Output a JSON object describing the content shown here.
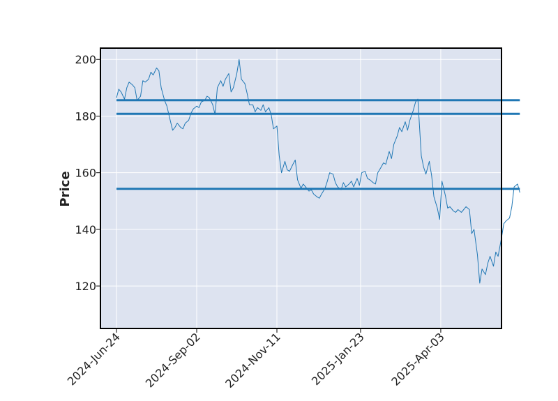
{
  "chart_data": {
    "type": "line",
    "title": "",
    "xlabel": "",
    "ylabel": "Price",
    "ylim": [
      105,
      204
    ],
    "yticks": [
      120,
      140,
      160,
      180,
      200
    ],
    "xlim": [
      "2024-06-10",
      "2025-05-26"
    ],
    "xticks": [
      {
        "date": "2024-06-24",
        "label": "2024-Jun-24"
      },
      {
        "date": "2024-09-02",
        "label": "2024-Sep-02"
      },
      {
        "date": "2024-11-11",
        "label": "2024-Nov-11"
      },
      {
        "date": "2025-01-23",
        "label": "2025-Jan-23"
      },
      {
        "date": "2025-04-03",
        "label": "2025-Apr-03"
      }
    ],
    "grid": true,
    "background": "#dde3f0",
    "line_color": "#1f77b4",
    "series": [
      {
        "points": [
          [
            "2024-06-24",
            186.5
          ],
          [
            "2024-06-26",
            189.5
          ],
          [
            "2024-06-28",
            188.5
          ],
          [
            "2024-07-01",
            186.0
          ],
          [
            "2024-07-03",
            190.0
          ],
          [
            "2024-07-05",
            192.0
          ],
          [
            "2024-07-08",
            191.0
          ],
          [
            "2024-07-10",
            190.0
          ],
          [
            "2024-07-12",
            185.5
          ],
          [
            "2024-07-15",
            187.0
          ],
          [
            "2024-07-17",
            192.5
          ],
          [
            "2024-07-19",
            192.0
          ],
          [
            "2024-07-22",
            193.0
          ],
          [
            "2024-07-24",
            195.5
          ],
          [
            "2024-07-26",
            194.5
          ],
          [
            "2024-07-29",
            197.0
          ],
          [
            "2024-07-31",
            196.0
          ],
          [
            "2024-08-02",
            190.0
          ],
          [
            "2024-08-05",
            185.5
          ],
          [
            "2024-08-07",
            183.5
          ],
          [
            "2024-08-09",
            180.0
          ],
          [
            "2024-08-12",
            175.0
          ],
          [
            "2024-08-14",
            176.0
          ],
          [
            "2024-08-16",
            177.5
          ],
          [
            "2024-08-19",
            176.0
          ],
          [
            "2024-08-21",
            175.5
          ],
          [
            "2024-08-23",
            177.5
          ],
          [
            "2024-08-26",
            178.5
          ],
          [
            "2024-08-28",
            181.0
          ],
          [
            "2024-08-30",
            182.5
          ],
          [
            "2024-09-02",
            183.5
          ],
          [
            "2024-09-04",
            183.0
          ],
          [
            "2024-09-06",
            185.0
          ],
          [
            "2024-09-09",
            185.5
          ],
          [
            "2024-09-11",
            187.0
          ],
          [
            "2024-09-13",
            186.5
          ],
          [
            "2024-09-16",
            184.0
          ],
          [
            "2024-09-18",
            180.5
          ],
          [
            "2024-09-20",
            190.0
          ],
          [
            "2024-09-23",
            192.5
          ],
          [
            "2024-09-25",
            190.5
          ],
          [
            "2024-09-27",
            193.0
          ],
          [
            "2024-09-30",
            195.0
          ],
          [
            "2024-10-02",
            188.5
          ],
          [
            "2024-10-04",
            190.0
          ],
          [
            "2024-10-07",
            195.0
          ],
          [
            "2024-10-09",
            200.0
          ],
          [
            "2024-10-11",
            193.0
          ],
          [
            "2024-10-14",
            191.5
          ],
          [
            "2024-10-16",
            188.0
          ],
          [
            "2024-10-18",
            184.0
          ],
          [
            "2024-10-21",
            184.0
          ],
          [
            "2024-10-23",
            181.5
          ],
          [
            "2024-10-25",
            183.0
          ],
          [
            "2024-10-28",
            182.0
          ],
          [
            "2024-10-30",
            184.0
          ],
          [
            "2024-11-01",
            181.5
          ],
          [
            "2024-11-04",
            183.0
          ],
          [
            "2024-11-06",
            180.5
          ],
          [
            "2024-11-08",
            175.5
          ],
          [
            "2024-11-11",
            176.5
          ],
          [
            "2024-11-13",
            166.0
          ],
          [
            "2024-11-15",
            160.0
          ],
          [
            "2024-11-18",
            164.0
          ],
          [
            "2024-11-20",
            161.0
          ],
          [
            "2024-11-22",
            160.5
          ],
          [
            "2024-11-25",
            163.0
          ],
          [
            "2024-11-27",
            164.5
          ],
          [
            "2024-11-29",
            157.5
          ],
          [
            "2024-12-02",
            154.5
          ],
          [
            "2024-12-04",
            156.0
          ],
          [
            "2024-12-06",
            155.0
          ],
          [
            "2024-12-09",
            153.5
          ],
          [
            "2024-12-11",
            154.0
          ],
          [
            "2024-12-13",
            152.5
          ],
          [
            "2024-12-16",
            151.5
          ],
          [
            "2024-12-18",
            151.0
          ],
          [
            "2024-12-20",
            152.5
          ],
          [
            "2024-12-23",
            154.5
          ],
          [
            "2024-12-25",
            157.0
          ],
          [
            "2024-12-27",
            160.0
          ],
          [
            "2024-12-30",
            159.5
          ],
          [
            "2025-01-01",
            156.5
          ],
          [
            "2025-01-03",
            155.0
          ],
          [
            "2025-01-06",
            154.0
          ],
          [
            "2025-01-08",
            156.5
          ],
          [
            "2025-01-10",
            155.0
          ],
          [
            "2025-01-13",
            156.0
          ],
          [
            "2025-01-15",
            157.0
          ],
          [
            "2025-01-17",
            155.0
          ],
          [
            "2025-01-20",
            158.0
          ],
          [
            "2025-01-22",
            155.5
          ],
          [
            "2025-01-24",
            160.0
          ],
          [
            "2025-01-27",
            160.5
          ],
          [
            "2025-01-29",
            158.0
          ],
          [
            "2025-01-31",
            157.5
          ],
          [
            "2025-02-03",
            156.5
          ],
          [
            "2025-02-05",
            156.0
          ],
          [
            "2025-02-07",
            160.0
          ],
          [
            "2025-02-10",
            162.0
          ],
          [
            "2025-02-12",
            163.5
          ],
          [
            "2025-02-14",
            163.0
          ],
          [
            "2025-02-17",
            167.5
          ],
          [
            "2025-02-19",
            165.0
          ],
          [
            "2025-02-21",
            170.0
          ],
          [
            "2025-02-24",
            173.0
          ],
          [
            "2025-02-26",
            176.0
          ],
          [
            "2025-02-28",
            174.5
          ],
          [
            "2025-03-03",
            178.0
          ],
          [
            "2025-03-05",
            175.0
          ],
          [
            "2025-03-07",
            178.5
          ],
          [
            "2025-03-10",
            182.0
          ],
          [
            "2025-03-12",
            185.0
          ],
          [
            "2025-03-14",
            186.0
          ],
          [
            "2025-03-17",
            166.0
          ],
          [
            "2025-03-19",
            162.0
          ],
          [
            "2025-03-21",
            159.5
          ],
          [
            "2025-03-24",
            164.0
          ],
          [
            "2025-03-26",
            159.0
          ],
          [
            "2025-03-28",
            151.5
          ],
          [
            "2025-03-31",
            147.5
          ],
          [
            "2025-04-02",
            143.5
          ],
          [
            "2025-04-04",
            157.0
          ],
          [
            "2025-04-07",
            152.0
          ],
          [
            "2025-04-09",
            147.5
          ],
          [
            "2025-04-11",
            148.0
          ],
          [
            "2025-04-14",
            146.5
          ],
          [
            "2025-04-16",
            146.0
          ],
          [
            "2025-04-18",
            147.0
          ],
          [
            "2025-04-21",
            146.0
          ],
          [
            "2025-04-23",
            147.0
          ],
          [
            "2025-04-25",
            148.0
          ],
          [
            "2025-04-28",
            147.0
          ],
          [
            "2025-04-30",
            138.5
          ],
          [
            "2025-05-02",
            140.0
          ],
          [
            "2025-05-05",
            131.0
          ],
          [
            "2025-05-07",
            121.0
          ],
          [
            "2025-05-09",
            126.0
          ],
          [
            "2025-05-12",
            124.0
          ],
          [
            "2025-05-14",
            128.0
          ],
          [
            "2025-05-16",
            130.5
          ],
          [
            "2025-05-19",
            127.0
          ],
          [
            "2025-05-21",
            132.0
          ],
          [
            "2025-05-23",
            130.5
          ],
          [
            "2025-05-26",
            137.0
          ],
          [
            "2025-05-28",
            142.0
          ],
          [
            "2025-05-30",
            143.0
          ],
          [
            "2025-06-02",
            144.0
          ],
          [
            "2025-06-04",
            148.0
          ],
          [
            "2025-06-06",
            155.0
          ],
          [
            "2025-06-09",
            156.0
          ],
          [
            "2025-06-11",
            153.0
          ]
        ]
      }
    ],
    "hlines": [
      185.6,
      180.8,
      154.3
    ],
    "hline_range": [
      "2024-06-24",
      "2025-06-11"
    ]
  }
}
